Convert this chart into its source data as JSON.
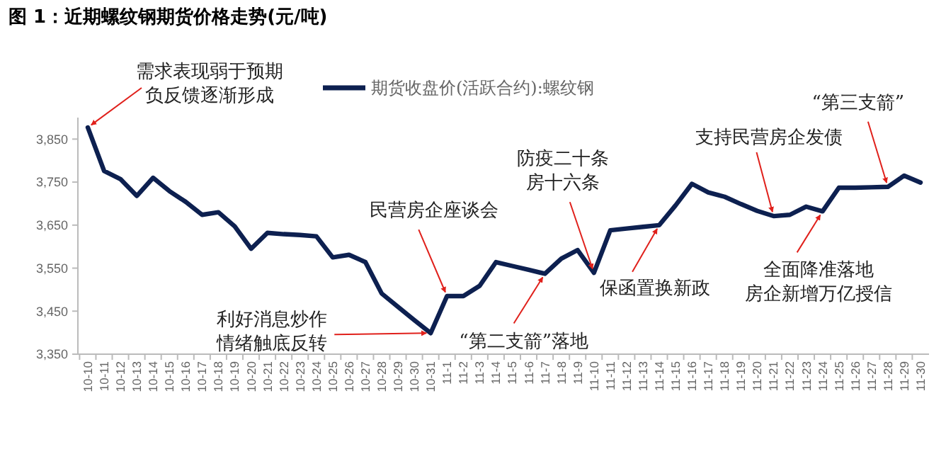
{
  "chart_data": {
    "type": "line",
    "title": "图 1：近期螺纹钢期货价格走势(元/吨)",
    "categories": [
      "10-10",
      "10-11",
      "10-12",
      "10-13",
      "10-14",
      "10-15",
      "10-16",
      "10-17",
      "10-18",
      "10-19",
      "10-20",
      "10-21",
      "10-22",
      "10-23",
      "10-24",
      "10-25",
      "10-26",
      "10-27",
      "10-28",
      "10-29",
      "10-30",
      "10-31",
      "11-1",
      "11-2",
      "11-3",
      "11-4",
      "11-5",
      "11-6",
      "11-7",
      "11-8",
      "11-9",
      "11-10",
      "11-11",
      "11-12",
      "11-13",
      "11-14",
      "11-15",
      "11-16",
      "11-17",
      "11-18",
      "11-19",
      "11-20",
      "11-21",
      "11-22",
      "11-23",
      "11-24",
      "11-25",
      "11-26",
      "11-27",
      "11-28",
      "11-29",
      "11-30"
    ],
    "series": [
      {
        "name": "期货收盘价(活跃合约):螺纹钢",
        "color": "#0d2050",
        "values": [
          3877,
          3776,
          3757,
          3718,
          3760,
          3729,
          3704,
          3674,
          3680,
          3647,
          3595,
          3632,
          3629,
          3627,
          3624,
          3575,
          3581,
          3564,
          3491,
          3460,
          3429,
          3399,
          3485,
          3485,
          3509,
          3564,
          3555,
          3546,
          3537,
          3572,
          3592,
          3539,
          3638,
          3642,
          3646,
          3650,
          3696,
          3746,
          3726,
          3716,
          3699,
          3683,
          3671,
          3674,
          3693,
          3682,
          3737,
          3737,
          3738,
          3739,
          3765,
          3749
        ]
      }
    ],
    "ylim": [
      3350,
      3900
    ],
    "yticks": [
      {
        "value": 3350,
        "label": "3,350"
      },
      {
        "value": 3450,
        "label": "3,450"
      },
      {
        "value": 3550,
        "label": "3,550"
      },
      {
        "value": 3650,
        "label": "3,650"
      },
      {
        "value": 3750,
        "label": "3,750"
      },
      {
        "value": 3850,
        "label": "3,850"
      }
    ],
    "legend": "top",
    "annotations": [
      {
        "text": "需求表现弱于预期负反馈逐渐形成",
        "x": "10-10",
        "y": 3877
      },
      {
        "text": "利好消息炒作情绪触底反转",
        "x": "10-31",
        "y": 3399
      },
      {
        "text": "民营房企座谈会",
        "x": "11-1",
        "y": 3485
      },
      {
        "text": "“第二支箭”落地",
        "x": "11-7",
        "y": 3537
      },
      {
        "text": "防疫二十条房十六条",
        "x": "11-10",
        "y": 3539
      },
      {
        "text": "保函置换新政",
        "x": "11-14",
        "y": 3650
      },
      {
        "text": "支持民营房企发债",
        "x": "11-21",
        "y": 3671
      },
      {
        "text": "全面降准落地房企新增万亿授信",
        "x": "11-24",
        "y": 3682
      },
      {
        "text": "“第三支箭”",
        "x": "11-28",
        "y": 3739
      }
    ]
  }
}
